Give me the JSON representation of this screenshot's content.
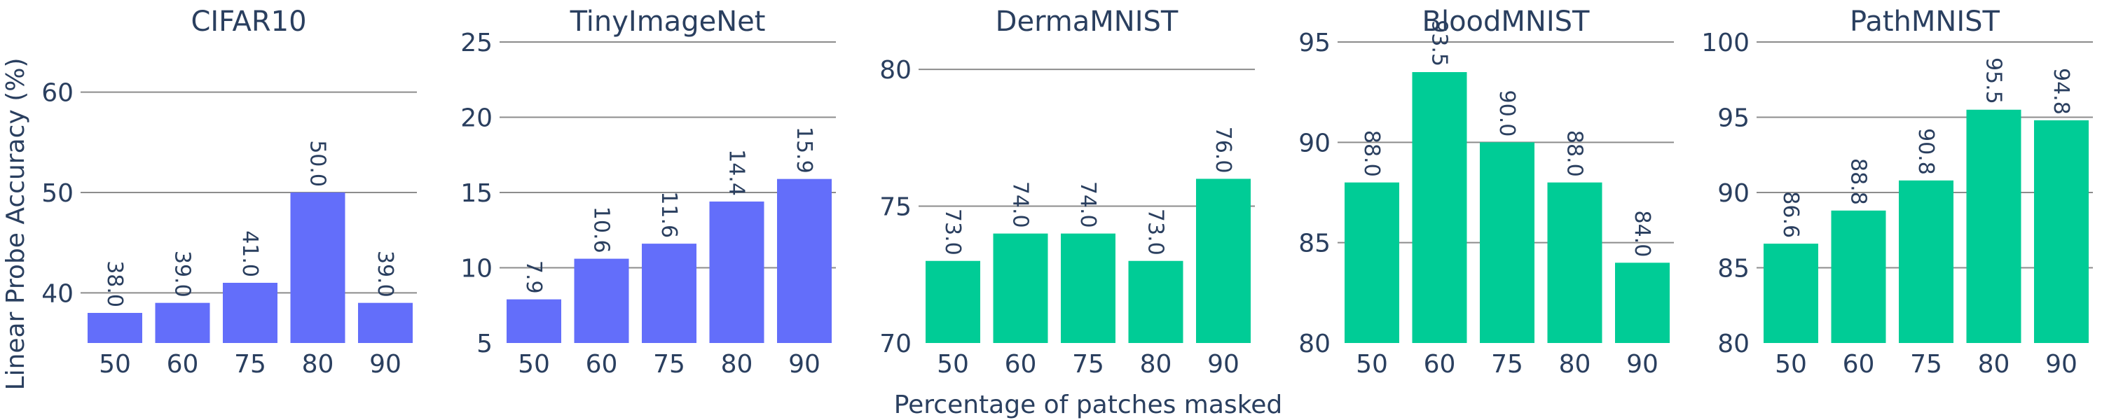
{
  "figure": {
    "ylabel": "Linear Probe Accuracy (%)",
    "xlabel": "Percentage of patches masked"
  },
  "chart_data": [
    {
      "type": "bar",
      "title": "CIFAR10",
      "categories": [
        "50",
        "60",
        "75",
        "80",
        "90"
      ],
      "values": [
        38.0,
        39.0,
        41.0,
        50.0,
        39.0
      ],
      "labels": [
        "38.0",
        "39.0",
        "41.0",
        "50.0",
        "39.0"
      ],
      "ylim": [
        35,
        65
      ],
      "yticks": [
        40,
        50,
        60
      ],
      "color": "#636efa",
      "grid": true
    },
    {
      "type": "bar",
      "title": "TinyImageNet",
      "categories": [
        "50",
        "60",
        "75",
        "80",
        "90"
      ],
      "values": [
        7.9,
        10.6,
        11.6,
        14.4,
        15.9
      ],
      "labels": [
        "7.9",
        "10.6",
        "11.6",
        "14.4",
        "15.9"
      ],
      "ylim": [
        5,
        25
      ],
      "yticks": [
        5,
        10,
        15,
        20,
        25
      ],
      "color": "#636efa",
      "grid": true
    },
    {
      "type": "bar",
      "title": "DermaMNIST",
      "categories": [
        "50",
        "60",
        "75",
        "80",
        "90"
      ],
      "values": [
        73.0,
        74.0,
        74.0,
        73.0,
        76.0
      ],
      "labels": [
        "73.0",
        "74.0",
        "74.0",
        "73.0",
        "76.0"
      ],
      "ylim": [
        70,
        81
      ],
      "yticks": [
        70,
        75,
        80
      ],
      "color": "#00cc96",
      "grid": true
    },
    {
      "type": "bar",
      "title": "BloodMNIST",
      "categories": [
        "50",
        "60",
        "75",
        "80",
        "90"
      ],
      "values": [
        88.0,
        93.5,
        90.0,
        88.0,
        84.0
      ],
      "labels": [
        "88.0",
        "93.5",
        "90.0",
        "88.0",
        "84.0"
      ],
      "ylim": [
        80,
        95
      ],
      "yticks": [
        80,
        85,
        90,
        95
      ],
      "color": "#00cc96",
      "grid": true
    },
    {
      "type": "bar",
      "title": "PathMNIST",
      "categories": [
        "50",
        "60",
        "75",
        "80",
        "90"
      ],
      "values": [
        86.6,
        88.8,
        90.8,
        95.5,
        94.8
      ],
      "labels": [
        "86.6",
        "88.8",
        "90.8",
        "95.5",
        "94.8"
      ],
      "ylim": [
        80,
        100
      ],
      "yticks": [
        80,
        85,
        90,
        95,
        100
      ],
      "color": "#00cc96",
      "grid": true
    }
  ]
}
